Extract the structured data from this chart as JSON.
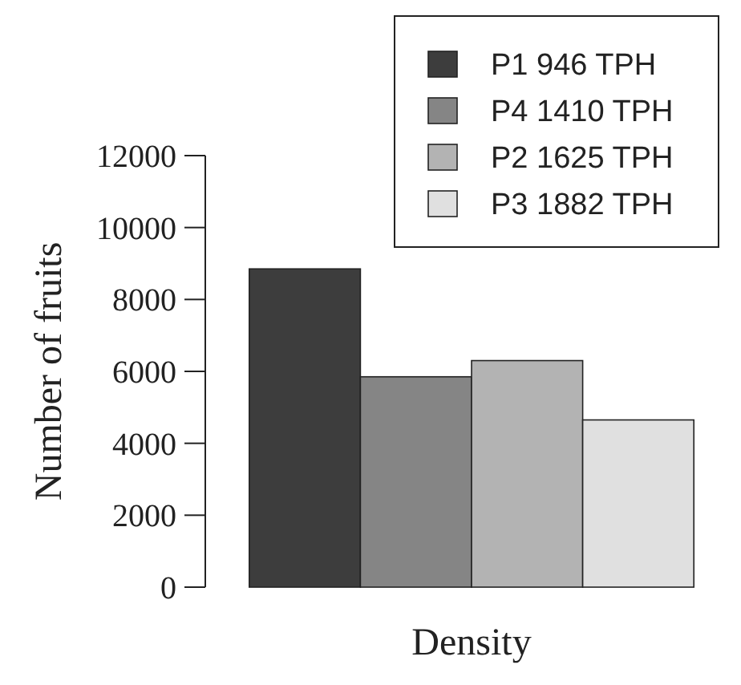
{
  "chart_data": {
    "type": "bar",
    "xlabel": "Density",
    "ylabel": "Number of fruits",
    "categories": [
      null
    ],
    "series": [
      {
        "name": "P1 946 TPH",
        "color": "#3d3d3d",
        "values": [
          8850
        ]
      },
      {
        "name": "P4 1410 TPH",
        "color": "#858585",
        "values": [
          5850
        ]
      },
      {
        "name": "P2 1625 TPH",
        "color": "#b3b3b3",
        "values": [
          6300
        ]
      },
      {
        "name": "P3 1882 TPH",
        "color": "#e0e0e0",
        "values": [
          4650
        ]
      }
    ],
    "ylim": [
      0,
      12000
    ],
    "yticks": [
      0,
      2000,
      4000,
      6000,
      8000,
      10000,
      12000
    ],
    "legend": "top right",
    "grid": false
  }
}
